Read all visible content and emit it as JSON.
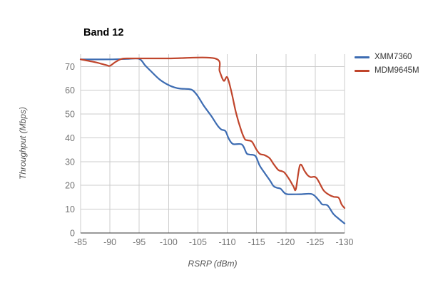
{
  "title": "Band 12",
  "legend": {
    "items": [
      {
        "label": "XMM7360",
        "color": "#3d6cb2"
      },
      {
        "label": "MDM9645M",
        "color": "#c0452c"
      }
    ]
  },
  "colors": {
    "gridline": "#cccccc",
    "axis_baseline": "#333333",
    "tick_text": "#757575",
    "axis_title_text": "#555555",
    "title_text": "#000000"
  },
  "chart_data": {
    "type": "line",
    "title": "Band 12",
    "xlabel": "RSRP (dBm)",
    "ylabel": "Throughput (Mbps)",
    "xlim": [
      -85,
      -130
    ],
    "ylim": [
      0,
      75.2
    ],
    "x_ticks": [
      -85,
      -90,
      -95,
      -100,
      -105,
      -110,
      -115,
      -120,
      -125,
      -130
    ],
    "y_ticks": [
      0,
      10,
      20,
      30,
      40,
      50,
      60,
      70
    ],
    "grid": true,
    "legend_position": "top-right",
    "line_style": "smooth",
    "series": [
      {
        "name": "XMM7360",
        "color": "#3d6cb2",
        "points": [
          [
            -85,
            73
          ],
          [
            -90,
            73
          ],
          [
            -93,
            73.2
          ],
          [
            -95,
            73.2
          ],
          [
            -96,
            70.5
          ],
          [
            -97,
            68
          ],
          [
            -98.5,
            64.5
          ],
          [
            -100,
            62.2
          ],
          [
            -101,
            61.2
          ],
          [
            -102,
            60.7
          ],
          [
            -103.5,
            60.5
          ],
          [
            -104.2,
            59.8
          ],
          [
            -105,
            57.5
          ],
          [
            -106,
            53.5
          ],
          [
            -107.2,
            49.5
          ],
          [
            -108.4,
            45
          ],
          [
            -109,
            43.5
          ],
          [
            -109.7,
            42.8
          ],
          [
            -110.3,
            39.5
          ],
          [
            -111,
            37.4
          ],
          [
            -112.5,
            37.2
          ],
          [
            -113.3,
            33.5
          ],
          [
            -113.8,
            33
          ],
          [
            -114.8,
            32.4
          ],
          [
            -115.5,
            28.5
          ],
          [
            -116.3,
            25.5
          ],
          [
            -117.3,
            22
          ],
          [
            -117.9,
            19.7
          ],
          [
            -118.5,
            19
          ],
          [
            -119.1,
            18.6
          ],
          [
            -119.7,
            17
          ],
          [
            -120.3,
            16.3
          ],
          [
            -122.5,
            16.3
          ],
          [
            -124.5,
            16.3
          ],
          [
            -125.7,
            13.5
          ],
          [
            -126.2,
            12
          ],
          [
            -127.1,
            11.6
          ],
          [
            -128.1,
            8
          ],
          [
            -129,
            6
          ],
          [
            -130,
            4
          ]
        ]
      },
      {
        "name": "MDM9645M",
        "color": "#c0452c",
        "points": [
          [
            -85,
            73
          ],
          [
            -86.5,
            72.3
          ],
          [
            -88,
            71.5
          ],
          [
            -89.5,
            70.5
          ],
          [
            -90,
            70.3
          ],
          [
            -91,
            72
          ],
          [
            -92,
            73.2
          ],
          [
            -93.5,
            73.4
          ],
          [
            -100,
            73.4
          ],
          [
            -107.9,
            73.4
          ],
          [
            -108.7,
            68
          ],
          [
            -109.4,
            64
          ],
          [
            -110,
            65.5
          ],
          [
            -110.7,
            59.5
          ],
          [
            -111.5,
            50.5
          ],
          [
            -112.4,
            43
          ],
          [
            -113,
            39.5
          ],
          [
            -113.4,
            39
          ],
          [
            -114.2,
            38.4
          ],
          [
            -115,
            35
          ],
          [
            -115.6,
            33.2
          ],
          [
            -116.3,
            32.8
          ],
          [
            -117.2,
            31.5
          ],
          [
            -117.9,
            29
          ],
          [
            -118.7,
            26.5
          ],
          [
            -119.3,
            26
          ],
          [
            -119.8,
            25.3
          ],
          [
            -120.6,
            22.5
          ],
          [
            -121.3,
            19.5
          ],
          [
            -121.7,
            18.5
          ],
          [
            -122.4,
            28.5
          ],
          [
            -123.2,
            26
          ],
          [
            -123.7,
            24.3
          ],
          [
            -124.2,
            23.5
          ],
          [
            -125.2,
            23.2
          ],
          [
            -126.4,
            18
          ],
          [
            -127.4,
            16
          ],
          [
            -128.2,
            15.2
          ],
          [
            -129,
            14.8
          ],
          [
            -129.5,
            12
          ],
          [
            -130,
            10.5
          ]
        ]
      }
    ]
  }
}
